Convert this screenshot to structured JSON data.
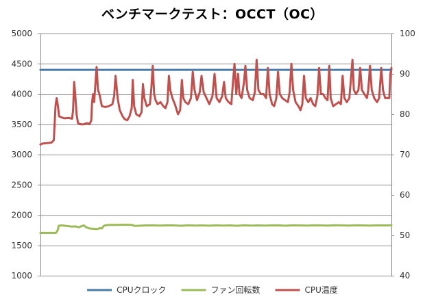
{
  "chart_data": {
    "type": "line",
    "title": "ベンチマークテスト：OCCT（OC）",
    "y_left": {
      "min": 1000,
      "max": 5000,
      "ticks": [
        1000,
        1500,
        2000,
        2500,
        3000,
        3500,
        4000,
        4500,
        5000
      ]
    },
    "y_right": {
      "min": 40,
      "max": 100,
      "ticks": [
        40,
        50,
        60,
        70,
        80,
        90,
        100
      ]
    },
    "x": {
      "min": 0,
      "max": 100
    },
    "grid": true,
    "legend_position": "bottom",
    "series": [
      {
        "name": "CPUクロック",
        "axis": "left",
        "color": "#4a7ba7",
        "points": [
          [
            0,
            4400
          ],
          [
            100,
            4400
          ]
        ]
      },
      {
        "name": "ファン回転数",
        "axis": "left",
        "color": "#9bbb59",
        "points": [
          [
            0,
            1705
          ],
          [
            1,
            1710
          ],
          [
            2,
            1705
          ],
          [
            3,
            1710
          ],
          [
            4,
            1705
          ],
          [
            4.5,
            1710
          ],
          [
            5,
            1765
          ],
          [
            5.2,
            1825
          ],
          [
            6,
            1830
          ],
          [
            7,
            1825
          ],
          [
            8,
            1818
          ],
          [
            9,
            1810
          ],
          [
            10,
            1815
          ],
          [
            11,
            1800
          ],
          [
            11.8,
            1820
          ],
          [
            12.4,
            1830
          ],
          [
            13,
            1800
          ],
          [
            14,
            1780
          ],
          [
            15,
            1775
          ],
          [
            16,
            1770
          ],
          [
            17,
            1785
          ],
          [
            17.5,
            1780
          ],
          [
            18,
            1820
          ],
          [
            18.6,
            1835
          ],
          [
            20,
            1840
          ],
          [
            22,
            1838
          ],
          [
            24,
            1842
          ],
          [
            26,
            1838
          ],
          [
            27,
            1822
          ],
          [
            28,
            1825
          ],
          [
            30,
            1830
          ],
          [
            32,
            1832
          ],
          [
            34,
            1828
          ],
          [
            36,
            1832
          ],
          [
            38,
            1830
          ],
          [
            40,
            1825
          ],
          [
            42,
            1832
          ],
          [
            44,
            1828
          ],
          [
            46,
            1830
          ],
          [
            48,
            1826
          ],
          [
            50,
            1832
          ],
          [
            52,
            1828
          ],
          [
            54,
            1830
          ],
          [
            56,
            1825
          ],
          [
            58,
            1832
          ],
          [
            60,
            1828
          ],
          [
            62,
            1830
          ],
          [
            64,
            1828
          ],
          [
            66,
            1832
          ],
          [
            68,
            1830
          ],
          [
            70,
            1826
          ],
          [
            72,
            1832
          ],
          [
            74,
            1830
          ],
          [
            76,
            1828
          ],
          [
            78,
            1832
          ],
          [
            80,
            1830
          ],
          [
            82,
            1828
          ],
          [
            84,
            1833
          ],
          [
            86,
            1830
          ],
          [
            88,
            1828
          ],
          [
            90,
            1832
          ],
          [
            92,
            1830
          ],
          [
            94,
            1828
          ],
          [
            96,
            1832
          ],
          [
            98,
            1830
          ],
          [
            100,
            1832
          ]
        ]
      },
      {
        "name": "CPU温度",
        "axis": "right",
        "color": "#c0504d",
        "points": [
          [
            0,
            72.5
          ],
          [
            0.4,
            72.7
          ],
          [
            1.2,
            72.8
          ],
          [
            2.4,
            72.9
          ],
          [
            3.2,
            73.0
          ],
          [
            3.8,
            73.6
          ],
          [
            4.0,
            77
          ],
          [
            4.3,
            82
          ],
          [
            4.6,
            84
          ],
          [
            5.0,
            82
          ],
          [
            5.3,
            79.5
          ],
          [
            6,
            79.2
          ],
          [
            7,
            79.0
          ],
          [
            8,
            79.1
          ],
          [
            9,
            78.9
          ],
          [
            9.3,
            81
          ],
          [
            9.6,
            88
          ],
          [
            9.9,
            85
          ],
          [
            10.3,
            80
          ],
          [
            10.7,
            77.8
          ],
          [
            11.5,
            77.5
          ],
          [
            12.3,
            77.5
          ],
          [
            13.2,
            77.8
          ],
          [
            14,
            77.6
          ],
          [
            14.5,
            78.5
          ],
          [
            14.7,
            83
          ],
          [
            15,
            85
          ],
          [
            15.3,
            83
          ],
          [
            15.7,
            88
          ],
          [
            16.0,
            91.7
          ],
          [
            16.4,
            86
          ],
          [
            16.8,
            85
          ],
          [
            17.5,
            82
          ],
          [
            18.5,
            81.8
          ],
          [
            19.5,
            82
          ],
          [
            20.5,
            82.5
          ],
          [
            21,
            84.5
          ],
          [
            21.4,
            89.5
          ],
          [
            22,
            84
          ],
          [
            22.6,
            81
          ],
          [
            23.4,
            79.5
          ],
          [
            24,
            78.8
          ],
          [
            24.7,
            78.5
          ],
          [
            25.4,
            79.5
          ],
          [
            26,
            81.5
          ],
          [
            26.3,
            88.5
          ],
          [
            26.7,
            82
          ],
          [
            27.3,
            80
          ],
          [
            28.2,
            79.5
          ],
          [
            28.8,
            80.5
          ],
          [
            29.2,
            87.5
          ],
          [
            29.6,
            84
          ],
          [
            30.3,
            82
          ],
          [
            31.2,
            82.5
          ],
          [
            31.6,
            86.5
          ],
          [
            32.0,
            92.0
          ],
          [
            32.4,
            85
          ],
          [
            32.8,
            83.5
          ],
          [
            33.4,
            82.5
          ],
          [
            34.2,
            83
          ],
          [
            35,
            82
          ],
          [
            35.6,
            81.5
          ],
          [
            36.2,
            83
          ],
          [
            36.6,
            89.5
          ],
          [
            37.0,
            86
          ],
          [
            37.6,
            84
          ],
          [
            38.3,
            82.5
          ],
          [
            39.2,
            80
          ],
          [
            39.8,
            81
          ],
          [
            40.3,
            88.5
          ],
          [
            40.7,
            84
          ],
          [
            41.3,
            83
          ],
          [
            42.1,
            82.5
          ],
          [
            42.9,
            84
          ],
          [
            43.4,
            90.5
          ],
          [
            43.9,
            86
          ],
          [
            44.6,
            83.5
          ],
          [
            45.4,
            85.5
          ],
          [
            45.9,
            89.5
          ],
          [
            46.5,
            85.5
          ],
          [
            47.3,
            84
          ],
          [
            48.1,
            82.5
          ],
          [
            49.0,
            84.5
          ],
          [
            49.6,
            90
          ],
          [
            50.2,
            84
          ],
          [
            51.0,
            83
          ],
          [
            51.8,
            84.5
          ],
          [
            52.3,
            88
          ],
          [
            52.8,
            84
          ],
          [
            53.6,
            83
          ],
          [
            54.4,
            82.5
          ],
          [
            54.9,
            88.5
          ],
          [
            55.3,
            92.5
          ],
          [
            55.8,
            85
          ],
          [
            56.3,
            90
          ],
          [
            56.7,
            85
          ],
          [
            57.3,
            84
          ],
          [
            58.0,
            88
          ],
          [
            58.4,
            92.0
          ],
          [
            58.9,
            86
          ],
          [
            59.6,
            84
          ],
          [
            60.5,
            83.5
          ],
          [
            61.1,
            85.5
          ],
          [
            61.6,
            93.5
          ],
          [
            62.1,
            86
          ],
          [
            62.8,
            85
          ],
          [
            63.6,
            85
          ],
          [
            64.3,
            84
          ],
          [
            64.8,
            91.5
          ],
          [
            65.3,
            85
          ],
          [
            66.0,
            82.5
          ],
          [
            66.6,
            82
          ],
          [
            67.2,
            84
          ],
          [
            67.7,
            90.5
          ],
          [
            68.2,
            85
          ],
          [
            68.9,
            84
          ],
          [
            69.7,
            83.5
          ],
          [
            70.5,
            83
          ],
          [
            71.0,
            85.5
          ],
          [
            71.5,
            92.5
          ],
          [
            72.0,
            86
          ],
          [
            72.7,
            83
          ],
          [
            73.5,
            82
          ],
          [
            74.1,
            81
          ],
          [
            74.6,
            82.5
          ],
          [
            75.1,
            89.5
          ],
          [
            75.6,
            84
          ],
          [
            76.3,
            83
          ],
          [
            77.0,
            84
          ],
          [
            77.7,
            82.5
          ],
          [
            78.3,
            82
          ],
          [
            78.9,
            84.5
          ],
          [
            79.4,
            91.5
          ],
          [
            79.9,
            85
          ],
          [
            80.5,
            85
          ],
          [
            81.2,
            84
          ],
          [
            81.8,
            83.5
          ],
          [
            82.3,
            92.0
          ],
          [
            82.7,
            84
          ],
          [
            83.4,
            82
          ],
          [
            84.2,
            82.5
          ],
          [
            85.0,
            83
          ],
          [
            85.6,
            82.5
          ],
          [
            86.1,
            89.5
          ],
          [
            86.6,
            84
          ],
          [
            87.3,
            83
          ],
          [
            88.0,
            84
          ],
          [
            88.4,
            88
          ],
          [
            88.9,
            93.5
          ],
          [
            89.3,
            86
          ],
          [
            89.9,
            85
          ],
          [
            90.6,
            86
          ],
          [
            91.1,
            91.5
          ],
          [
            91.6,
            86
          ],
          [
            92.3,
            85
          ],
          [
            93.0,
            84
          ],
          [
            93.4,
            86
          ],
          [
            93.9,
            92.0
          ],
          [
            94.4,
            86
          ],
          [
            95.1,
            84
          ],
          [
            95.9,
            83
          ],
          [
            96.5,
            84
          ],
          [
            97.1,
            91.5
          ],
          [
            97.6,
            86
          ],
          [
            98.2,
            84
          ],
          [
            98.8,
            84
          ],
          [
            99.4,
            84
          ],
          [
            99.7,
            90
          ],
          [
            100,
            91.5
          ]
        ]
      }
    ]
  }
}
